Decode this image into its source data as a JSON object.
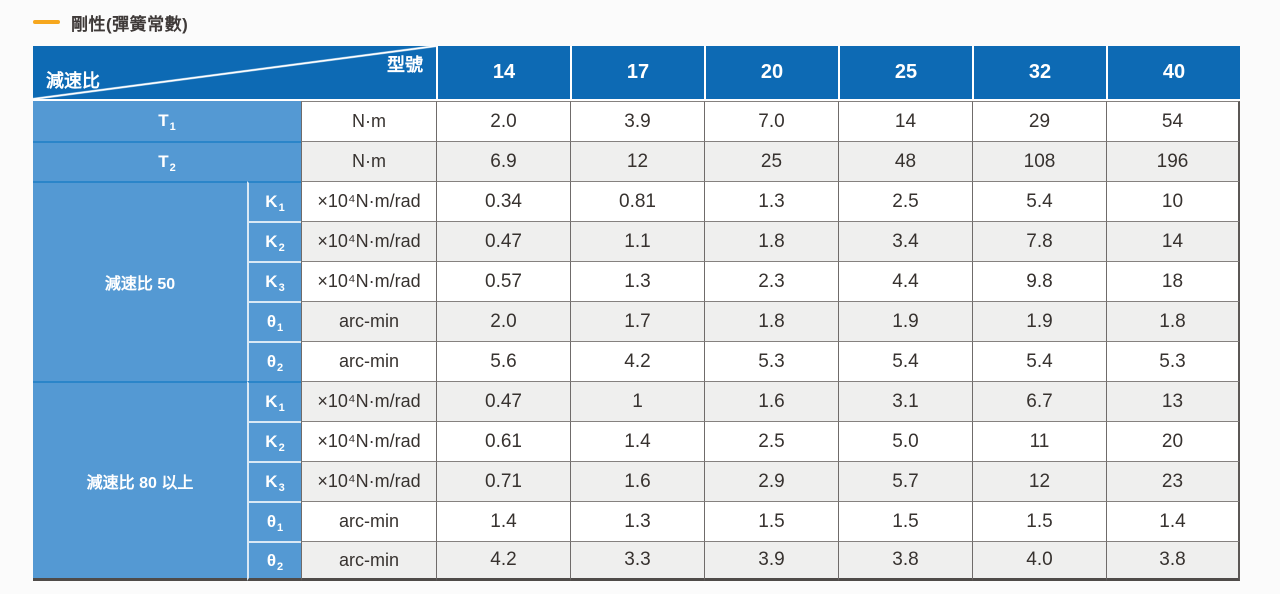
{
  "title": {
    "text": "剛性(彈簧常數)"
  },
  "colors": {
    "accent_orange": "#F6A71E",
    "header_blue": "#0D6AB4",
    "label_blue": "#5499D3",
    "label_border_blue": "#2B85C9",
    "row_alt_gray": "#EFEFEE",
    "grid_dark": "#6F6B6A",
    "table_bottom_border": "#4F4B49"
  },
  "table": {
    "corner": {
      "top_right_label": "型號",
      "bottom_left_label": "減速比"
    },
    "model_headers": [
      "14",
      "17",
      "20",
      "25",
      "32",
      "40"
    ],
    "sections": [
      {
        "group_label": null,
        "rows": [
          {
            "label": {
              "base": "T",
              "sub": "1"
            },
            "unit": "N·m",
            "values": [
              "2.0",
              "3.9",
              "7.0",
              "14",
              "29",
              "54"
            ]
          },
          {
            "label": {
              "base": "T",
              "sub": "2"
            },
            "unit": "N·m",
            "values": [
              "6.9",
              "12",
              "25",
              "48",
              "108",
              "196"
            ]
          }
        ]
      },
      {
        "group_label": "減速比 50",
        "rows": [
          {
            "label": {
              "base": "K",
              "sub": "1"
            },
            "unit": "×10⁴N·m/rad",
            "values": [
              "0.34",
              "0.81",
              "1.3",
              "2.5",
              "5.4",
              "10"
            ]
          },
          {
            "label": {
              "base": "K",
              "sub": "2"
            },
            "unit": "×10⁴N·m/rad",
            "values": [
              "0.47",
              "1.1",
              "1.8",
              "3.4",
              "7.8",
              "14"
            ]
          },
          {
            "label": {
              "base": "K",
              "sub": "3"
            },
            "unit": "×10⁴N·m/rad",
            "values": [
              "0.57",
              "1.3",
              "2.3",
              "4.4",
              "9.8",
              "18"
            ]
          },
          {
            "label": {
              "base": "θ",
              "sub": "1"
            },
            "unit": "arc-min",
            "values": [
              "2.0",
              "1.7",
              "1.8",
              "1.9",
              "1.9",
              "1.8"
            ]
          },
          {
            "label": {
              "base": "θ",
              "sub": "2"
            },
            "unit": "arc-min",
            "values": [
              "5.6",
              "4.2",
              "5.3",
              "5.4",
              "5.4",
              "5.3"
            ]
          }
        ]
      },
      {
        "group_label": "減速比 80 以上",
        "rows": [
          {
            "label": {
              "base": "K",
              "sub": "1"
            },
            "unit": "×10⁴N·m/rad",
            "values": [
              "0.47",
              "1",
              "1.6",
              "3.1",
              "6.7",
              "13"
            ]
          },
          {
            "label": {
              "base": "K",
              "sub": "2"
            },
            "unit": "×10⁴N·m/rad",
            "values": [
              "0.61",
              "1.4",
              "2.5",
              "5.0",
              "11",
              "20"
            ]
          },
          {
            "label": {
              "base": "K",
              "sub": "3"
            },
            "unit": "×10⁴N·m/rad",
            "values": [
              "0.71",
              "1.6",
              "2.9",
              "5.7",
              "12",
              "23"
            ]
          },
          {
            "label": {
              "base": "θ",
              "sub": "1"
            },
            "unit": "arc-min",
            "values": [
              "1.4",
              "1.3",
              "1.5",
              "1.5",
              "1.5",
              "1.4"
            ]
          },
          {
            "label": {
              "base": "θ",
              "sub": "2"
            },
            "unit": "arc-min",
            "values": [
              "4.2",
              "3.3",
              "3.9",
              "3.8",
              "4.0",
              "3.8"
            ]
          }
        ]
      }
    ]
  }
}
